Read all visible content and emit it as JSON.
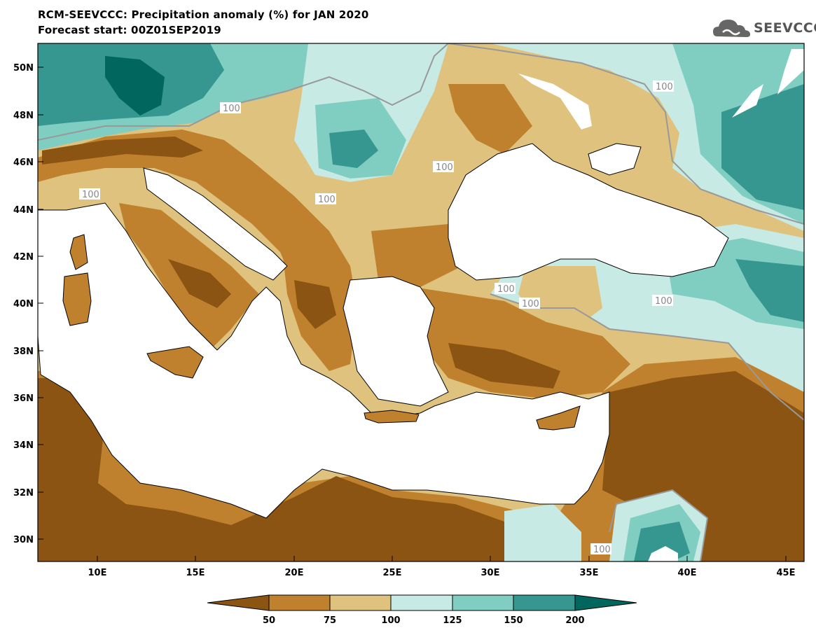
{
  "title_line1": "RCM-SEEVCCC: Precipitation anomaly (%) for JAN 2020",
  "title_line2": "Forecast start: 00Z01SEP2019",
  "logo_text": "SEEVCCC",
  "lat_labels": [
    "50N",
    "48N",
    "46N",
    "44N",
    "42N",
    "40N",
    "38N",
    "36N",
    "34N",
    "32N",
    "30N"
  ],
  "lon_labels": [
    "10E",
    "15E",
    "20E",
    "25E",
    "30E",
    "35E",
    "40E",
    "45E"
  ],
  "contour_label": "100",
  "colorbar": {
    "labels": [
      "50",
      "75",
      "100",
      "125",
      "150",
      "200"
    ],
    "colors": [
      "#8c5413",
      "#bf812d",
      "#dfc27d",
      "#c7eae5",
      "#80cdc1",
      "#35978f",
      "#01665e"
    ]
  },
  "colors": {
    "sea": "#ffffff",
    "dry_extreme": "#8c5413",
    "dry": "#bf812d",
    "slightly_dry": "#dfc27d",
    "slightly_wet": "#c7eae5",
    "wet": "#80cdc1",
    "very_wet": "#35978f",
    "wet_extreme": "#01665e",
    "contour_100": "#999999"
  }
}
